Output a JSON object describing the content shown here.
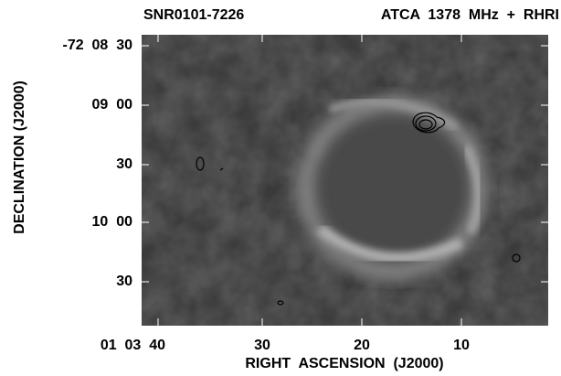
{
  "title": {
    "object": "SNR0101-7226",
    "instrument": "ATCA  1378  MHz  +  RHRI"
  },
  "y_axis": {
    "label": "DECLINATION (J2000)",
    "ticks": [
      "-72  08  30",
      "09  00",
      "30",
      "10  00",
      "30"
    ]
  },
  "x_axis": {
    "label": "RIGHT  ASCENSION  (J2000)",
    "ticks": [
      "01  03  40",
      "30",
      "20",
      "10"
    ]
  }
}
